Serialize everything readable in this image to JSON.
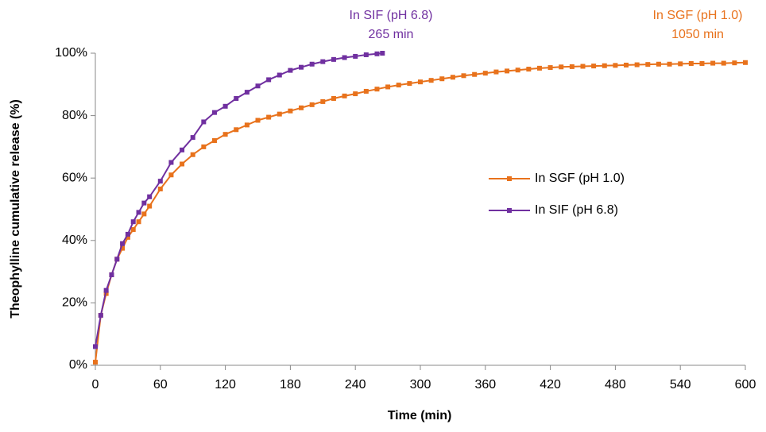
{
  "chart_data": {
    "type": "line",
    "x_label": "Time (min)",
    "y_label": "Theophylline cumulative release (%)",
    "xlim": [
      0,
      600
    ],
    "xticks": [
      0,
      60,
      120,
      180,
      240,
      300,
      360,
      420,
      480,
      540,
      600
    ],
    "ylim": [
      0,
      100
    ],
    "yticks": [
      {
        "value": 0,
        "label": "0%"
      },
      {
        "value": 20,
        "label": "20%"
      },
      {
        "value": 40,
        "label": "40%"
      },
      {
        "value": 60,
        "label": "60%"
      },
      {
        "value": 80,
        "label": "80%"
      },
      {
        "value": 100,
        "label": "100%"
      }
    ],
    "grid": false,
    "legend": "center right",
    "series": [
      {
        "name": "In SGF (pH 1.0)",
        "color": "#e8721c",
        "x": [
          0,
          5,
          10,
          15,
          20,
          25,
          30,
          35,
          40,
          45,
          50,
          60,
          70,
          80,
          90,
          100,
          110,
          120,
          130,
          140,
          150,
          160,
          170,
          180,
          190,
          200,
          210,
          220,
          230,
          240,
          250,
          260,
          270,
          280,
          290,
          300,
          310,
          320,
          330,
          340,
          350,
          360,
          370,
          380,
          390,
          400,
          410,
          420,
          430,
          440,
          450,
          460,
          470,
          480,
          490,
          500,
          510,
          520,
          530,
          540,
          550,
          560,
          570,
          580,
          590,
          600
        ],
        "values": [
          1,
          16,
          23,
          29,
          34,
          37.5,
          41,
          43.5,
          46,
          48.5,
          51,
          56.5,
          61,
          64.5,
          67.5,
          70,
          72,
          74,
          75.5,
          77,
          78.5,
          79.5,
          80.5,
          81.5,
          82.5,
          83.5,
          84.5,
          85.5,
          86.3,
          87,
          87.8,
          88.5,
          89.2,
          89.8,
          90.3,
          90.8,
          91.3,
          91.8,
          92.3,
          92.8,
          93.2,
          93.6,
          94,
          94.3,
          94.6,
          94.9,
          95.2,
          95.4,
          95.6,
          95.7,
          95.8,
          95.9,
          96,
          96.1,
          96.2,
          96.3,
          96.4,
          96.5,
          96.5,
          96.6,
          96.7,
          96.7,
          96.8,
          96.8,
          96.9,
          97
        ]
      },
      {
        "name": "In SIF (pH 6.8)",
        "color": "#7030a0",
        "x": [
          0,
          5,
          10,
          15,
          20,
          25,
          30,
          35,
          40,
          45,
          50,
          60,
          70,
          80,
          90,
          100,
          110,
          120,
          130,
          140,
          150,
          160,
          170,
          180,
          190,
          200,
          210,
          220,
          230,
          240,
          250,
          260,
          265
        ],
        "values": [
          6,
          16,
          24,
          29,
          34,
          39,
          42,
          46,
          49,
          52,
          54,
          59,
          65,
          69,
          73,
          78,
          81,
          83,
          85.5,
          87.5,
          89.5,
          91.5,
          93,
          94.5,
          95.5,
          96.5,
          97.3,
          98,
          98.6,
          99,
          99.5,
          99.8,
          100
        ]
      }
    ],
    "annotations": [
      {
        "lines": [
          "In SIF (pH 6.8)",
          "265 min"
        ],
        "color": "#7030a0"
      },
      {
        "lines": [
          "In SGF (pH 1.0)",
          "1050 min"
        ],
        "color": "#e8721c"
      }
    ]
  }
}
